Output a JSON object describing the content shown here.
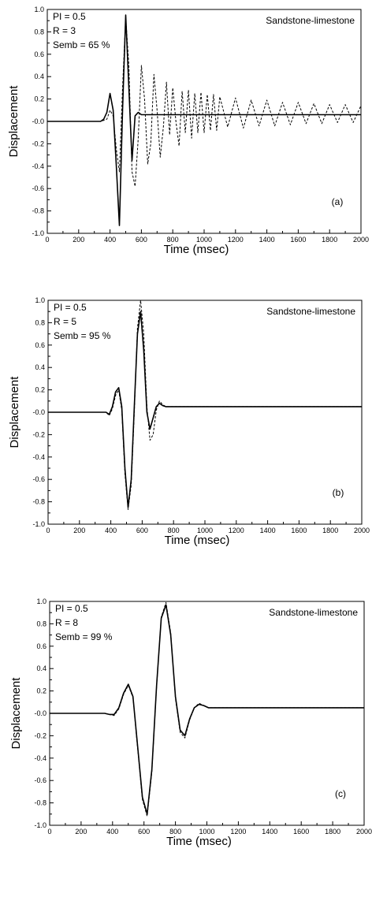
{
  "chart_data": [
    {
      "type": "line",
      "panel_label": "(a)",
      "annotations": [
        "PI = 0.5",
        "R = 3",
        "Semb = 65 %"
      ],
      "note": "Sandstone-limestone",
      "xlabel": "Time (msec)",
      "ylabel": "Displacement",
      "xlim": [
        0,
        2000
      ],
      "ylim": [
        -1.0,
        1.0
      ],
      "xticks": [
        "0",
        "200",
        "400",
        "600",
        "800",
        "1000",
        "1200",
        "1400",
        "1600",
        "1800",
        "2000"
      ],
      "yticks": [
        "-1.0",
        "-0.8",
        "-0.6",
        "-0.4",
        "-0.2",
        "-0.0",
        "0.2",
        "0.4",
        "0.6",
        "0.8",
        "1.0"
      ],
      "series": [
        {
          "style": "solid",
          "x": [
            0,
            340,
            360,
            380,
            400,
            420,
            440,
            460,
            480,
            500,
            520,
            540,
            560,
            580,
            600,
            700,
            800,
            900,
            1000,
            1200,
            1400,
            1600,
            1800,
            2000
          ],
          "y": [
            0,
            0,
            0.02,
            0.08,
            0.25,
            0.1,
            -0.4,
            -0.93,
            0.1,
            0.95,
            0.3,
            -0.35,
            0.05,
            0.08,
            0.06,
            0.06,
            0.06,
            0.06,
            0.06,
            0.06,
            0.06,
            0.06,
            0.06,
            0.06
          ]
        },
        {
          "style": "dashed",
          "x": [
            0,
            340,
            380,
            400,
            420,
            440,
            460,
            480,
            500,
            520,
            540,
            560,
            580,
            600,
            620,
            640,
            660,
            680,
            700,
            720,
            740,
            760,
            780,
            800,
            820,
            840,
            860,
            880,
            900,
            920,
            940,
            960,
            980,
            1000,
            1020,
            1040,
            1060,
            1080,
            1100,
            1150,
            1200,
            1250,
            1300,
            1350,
            1400,
            1450,
            1500,
            1550,
            1600,
            1650,
            1700,
            1750,
            1800,
            1850,
            1900,
            1950,
            2000
          ],
          "y": [
            0,
            0,
            0.02,
            0.1,
            0.05,
            -0.25,
            -0.45,
            0.3,
            0.93,
            0.5,
            -0.45,
            -0.58,
            -0.15,
            0.5,
            0.2,
            -0.38,
            -0.2,
            0.42,
            0.1,
            -0.32,
            -0.05,
            0.35,
            -0.12,
            0.3,
            0.0,
            -0.22,
            0.27,
            -0.1,
            0.28,
            -0.15,
            0.25,
            -0.1,
            0.26,
            -0.1,
            0.24,
            -0.08,
            0.24,
            -0.08,
            0.22,
            -0.05,
            0.21,
            -0.06,
            0.19,
            -0.04,
            0.19,
            -0.04,
            0.17,
            -0.03,
            0.17,
            -0.02,
            0.16,
            -0.02,
            0.15,
            -0.01,
            0.15,
            -0.01,
            0.14
          ]
        }
      ]
    },
    {
      "type": "line",
      "panel_label": "(b)",
      "annotations": [
        "PI = 0.5",
        "R = 5",
        "Semb = 95 %"
      ],
      "note": "Sandstone-limestone",
      "xlabel": "Time (msec)",
      "ylabel": "Displacement",
      "xlim": [
        0,
        2000
      ],
      "ylim": [
        -1.0,
        1.0
      ],
      "xticks": [
        "0",
        "200",
        "400",
        "600",
        "800",
        "1000",
        "1200",
        "1400",
        "1600",
        "1800",
        "2000"
      ],
      "yticks": [
        "-1.0",
        "-0.8",
        "-0.6",
        "-0.4",
        "-0.2",
        "-0.0",
        "0.2",
        "0.4",
        "0.6",
        "0.8",
        "1.0"
      ],
      "series": [
        {
          "style": "solid",
          "x": [
            0,
            350,
            370,
            390,
            410,
            430,
            450,
            470,
            490,
            510,
            530,
            550,
            570,
            590,
            610,
            630,
            650,
            670,
            690,
            710,
            730,
            750,
            800,
            1000,
            1500,
            2000
          ],
          "y": [
            0,
            0,
            0.0,
            -0.02,
            0.05,
            0.18,
            0.22,
            0.05,
            -0.5,
            -0.85,
            -0.6,
            0.05,
            0.7,
            0.9,
            0.55,
            0.0,
            -0.15,
            -0.05,
            0.05,
            0.08,
            0.06,
            0.05,
            0.05,
            0.05,
            0.05,
            0.05
          ]
        },
        {
          "style": "dashed",
          "x": [
            0,
            350,
            370,
            390,
            410,
            430,
            450,
            470,
            490,
            510,
            530,
            550,
            570,
            590,
            610,
            630,
            650,
            670,
            690,
            710,
            730,
            750,
            800,
            1000,
            1500,
            2000
          ],
          "y": [
            0,
            0,
            0.0,
            -0.03,
            0.03,
            0.15,
            0.2,
            0.02,
            -0.55,
            -0.87,
            -0.65,
            0.0,
            0.75,
            1.0,
            0.7,
            0.05,
            -0.25,
            -0.2,
            0.02,
            0.1,
            0.07,
            0.05,
            0.05,
            0.05,
            0.05,
            0.05
          ]
        }
      ]
    },
    {
      "type": "line",
      "panel_label": "(c)",
      "annotations": [
        "PI = 0.5",
        "R = 8",
        "Semb = 99 %"
      ],
      "note": "Sandstone-limestone",
      "xlabel": "Time (msec)",
      "ylabel": "Displacement",
      "xlim": [
        0,
        2000
      ],
      "ylim": [
        -1.0,
        1.0
      ],
      "xticks": [
        "0",
        "200",
        "400",
        "600",
        "800",
        "1000",
        "1200",
        "1400",
        "1600",
        "1800",
        "2000"
      ],
      "yticks": [
        "-1.0",
        "-0.8",
        "-0.6",
        "-0.4",
        "-0.2",
        "-0.0",
        "0.2",
        "0.4",
        "0.6",
        "0.8",
        "1.0"
      ],
      "series": [
        {
          "style": "solid",
          "x": [
            0,
            350,
            380,
            410,
            440,
            470,
            500,
            530,
            560,
            590,
            620,
            650,
            680,
            710,
            740,
            770,
            800,
            830,
            860,
            890,
            920,
            950,
            980,
            1010,
            1050,
            1100,
            1500,
            2000
          ],
          "y": [
            0,
            0,
            -0.01,
            -0.01,
            0.05,
            0.18,
            0.26,
            0.15,
            -0.3,
            -0.75,
            -0.9,
            -0.5,
            0.25,
            0.85,
            0.97,
            0.7,
            0.15,
            -0.15,
            -0.2,
            -0.05,
            0.05,
            0.08,
            0.07,
            0.05,
            0.05,
            0.05,
            0.05,
            0.05
          ]
        },
        {
          "style": "dashed",
          "x": [
            0,
            350,
            380,
            410,
            440,
            470,
            500,
            530,
            560,
            590,
            620,
            650,
            680,
            710,
            740,
            770,
            800,
            830,
            860,
            890,
            920,
            950,
            980,
            1010,
            1050,
            1100,
            1500,
            2000
          ],
          "y": [
            0,
            0,
            -0.01,
            -0.02,
            0.04,
            0.17,
            0.25,
            0.14,
            -0.32,
            -0.77,
            -0.92,
            -0.52,
            0.24,
            0.86,
            0.99,
            0.72,
            0.13,
            -0.17,
            -0.22,
            -0.06,
            0.05,
            0.09,
            0.07,
            0.05,
            0.05,
            0.05,
            0.05,
            0.05
          ]
        }
      ]
    }
  ]
}
